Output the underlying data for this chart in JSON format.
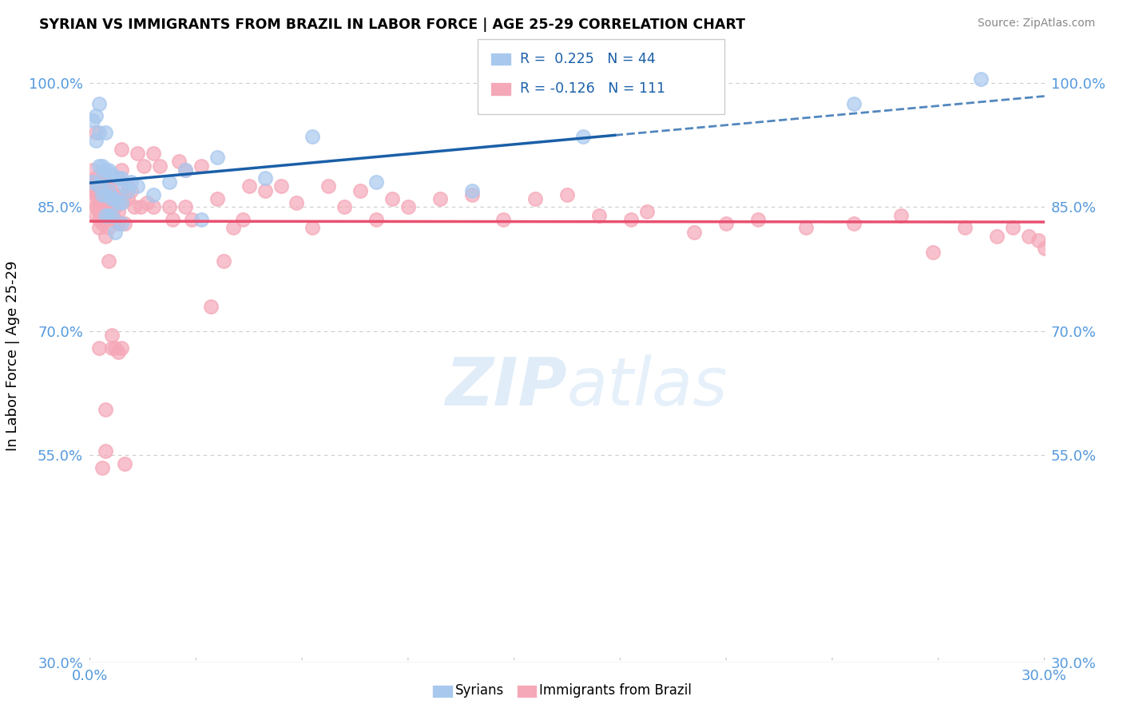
{
  "title": "SYRIAN VS IMMIGRANTS FROM BRAZIL IN LABOR FORCE | AGE 25-29 CORRELATION CHART",
  "source": "Source: ZipAtlas.com",
  "ylabel": "In Labor Force | Age 25-29",
  "x_min": 0.0,
  "x_max": 0.3,
  "y_min": 0.3,
  "y_max": 1.04,
  "y_ticks": [
    0.3,
    0.55,
    0.7,
    0.85,
    1.0
  ],
  "y_tick_labels": [
    "30.0%",
    "55.0%",
    "70.0%",
    "85.0%",
    "100.0%"
  ],
  "x_ticks_count": 10,
  "legend_r_blue": "R =  0.225",
  "legend_n_blue": "N = 44",
  "legend_r_pink": "R = -0.126",
  "legend_n_pink": "N = 111",
  "legend_label_blue": "Syrians",
  "legend_label_pink": "Immigrants from Brazil",
  "blue_color": "#A8C8EE",
  "pink_color": "#F5A8B8",
  "blue_line_color": "#1A5FA8",
  "pink_line_color": "#E85070",
  "watermark_zip": "ZIP",
  "watermark_atlas": "atlas",
  "blue_scatter_x": [
    0.001,
    0.001,
    0.002,
    0.002,
    0.003,
    0.003,
    0.003,
    0.003,
    0.004,
    0.004,
    0.004,
    0.005,
    0.005,
    0.005,
    0.005,
    0.006,
    0.006,
    0.006,
    0.007,
    0.007,
    0.007,
    0.008,
    0.008,
    0.009,
    0.009,
    0.01,
    0.01,
    0.01,
    0.011,
    0.012,
    0.013,
    0.015,
    0.02,
    0.025,
    0.03,
    0.035,
    0.04,
    0.055,
    0.07,
    0.09,
    0.12,
    0.155,
    0.24,
    0.28
  ],
  "blue_scatter_y": [
    0.88,
    0.955,
    0.93,
    0.96,
    0.875,
    0.9,
    0.94,
    0.975,
    0.865,
    0.885,
    0.9,
    0.84,
    0.865,
    0.895,
    0.94,
    0.84,
    0.87,
    0.895,
    0.84,
    0.86,
    0.89,
    0.82,
    0.86,
    0.855,
    0.885,
    0.83,
    0.855,
    0.885,
    0.875,
    0.87,
    0.88,
    0.875,
    0.865,
    0.88,
    0.895,
    0.835,
    0.91,
    0.885,
    0.935,
    0.88,
    0.87,
    0.935,
    0.975,
    1.005
  ],
  "pink_scatter_x": [
    0.001,
    0.001,
    0.001,
    0.001,
    0.002,
    0.002,
    0.002,
    0.002,
    0.002,
    0.003,
    0.003,
    0.003,
    0.003,
    0.003,
    0.003,
    0.004,
    0.004,
    0.004,
    0.004,
    0.004,
    0.005,
    0.005,
    0.005,
    0.005,
    0.005,
    0.005,
    0.006,
    0.006,
    0.006,
    0.006,
    0.007,
    0.007,
    0.007,
    0.008,
    0.008,
    0.008,
    0.009,
    0.009,
    0.009,
    0.01,
    0.01,
    0.01,
    0.011,
    0.011,
    0.012,
    0.012,
    0.013,
    0.014,
    0.015,
    0.016,
    0.017,
    0.018,
    0.02,
    0.02,
    0.022,
    0.025,
    0.026,
    0.028,
    0.03,
    0.03,
    0.032,
    0.035,
    0.038,
    0.04,
    0.042,
    0.045,
    0.048,
    0.05,
    0.055,
    0.06,
    0.065,
    0.07,
    0.075,
    0.08,
    0.085,
    0.09,
    0.095,
    0.1,
    0.11,
    0.12,
    0.13,
    0.14,
    0.15,
    0.16,
    0.17,
    0.175,
    0.19,
    0.2,
    0.21,
    0.225,
    0.24,
    0.255,
    0.265,
    0.275,
    0.285,
    0.29,
    0.295,
    0.298,
    0.3,
    0.005,
    0.005,
    0.004,
    0.003,
    0.002,
    0.006,
    0.007,
    0.007,
    0.008,
    0.009,
    0.01,
    0.011
  ],
  "pink_scatter_y": [
    0.88,
    0.895,
    0.87,
    0.855,
    0.885,
    0.87,
    0.85,
    0.84,
    0.865,
    0.88,
    0.87,
    0.855,
    0.845,
    0.835,
    0.825,
    0.88,
    0.865,
    0.855,
    0.84,
    0.83,
    0.88,
    0.87,
    0.855,
    0.845,
    0.835,
    0.815,
    0.875,
    0.86,
    0.845,
    0.825,
    0.875,
    0.86,
    0.845,
    0.865,
    0.85,
    0.835,
    0.86,
    0.845,
    0.83,
    0.92,
    0.895,
    0.855,
    0.865,
    0.83,
    0.86,
    0.875,
    0.87,
    0.85,
    0.915,
    0.85,
    0.9,
    0.855,
    0.915,
    0.85,
    0.9,
    0.85,
    0.835,
    0.905,
    0.895,
    0.85,
    0.835,
    0.9,
    0.73,
    0.86,
    0.785,
    0.825,
    0.835,
    0.875,
    0.87,
    0.875,
    0.855,
    0.825,
    0.875,
    0.85,
    0.87,
    0.835,
    0.86,
    0.85,
    0.86,
    0.865,
    0.835,
    0.86,
    0.865,
    0.84,
    0.835,
    0.845,
    0.82,
    0.83,
    0.835,
    0.825,
    0.83,
    0.84,
    0.795,
    0.825,
    0.815,
    0.825,
    0.815,
    0.81,
    0.8,
    0.605,
    0.555,
    0.535,
    0.68,
    0.94,
    0.785,
    0.695,
    0.68,
    0.68,
    0.675,
    0.68,
    0.54
  ]
}
